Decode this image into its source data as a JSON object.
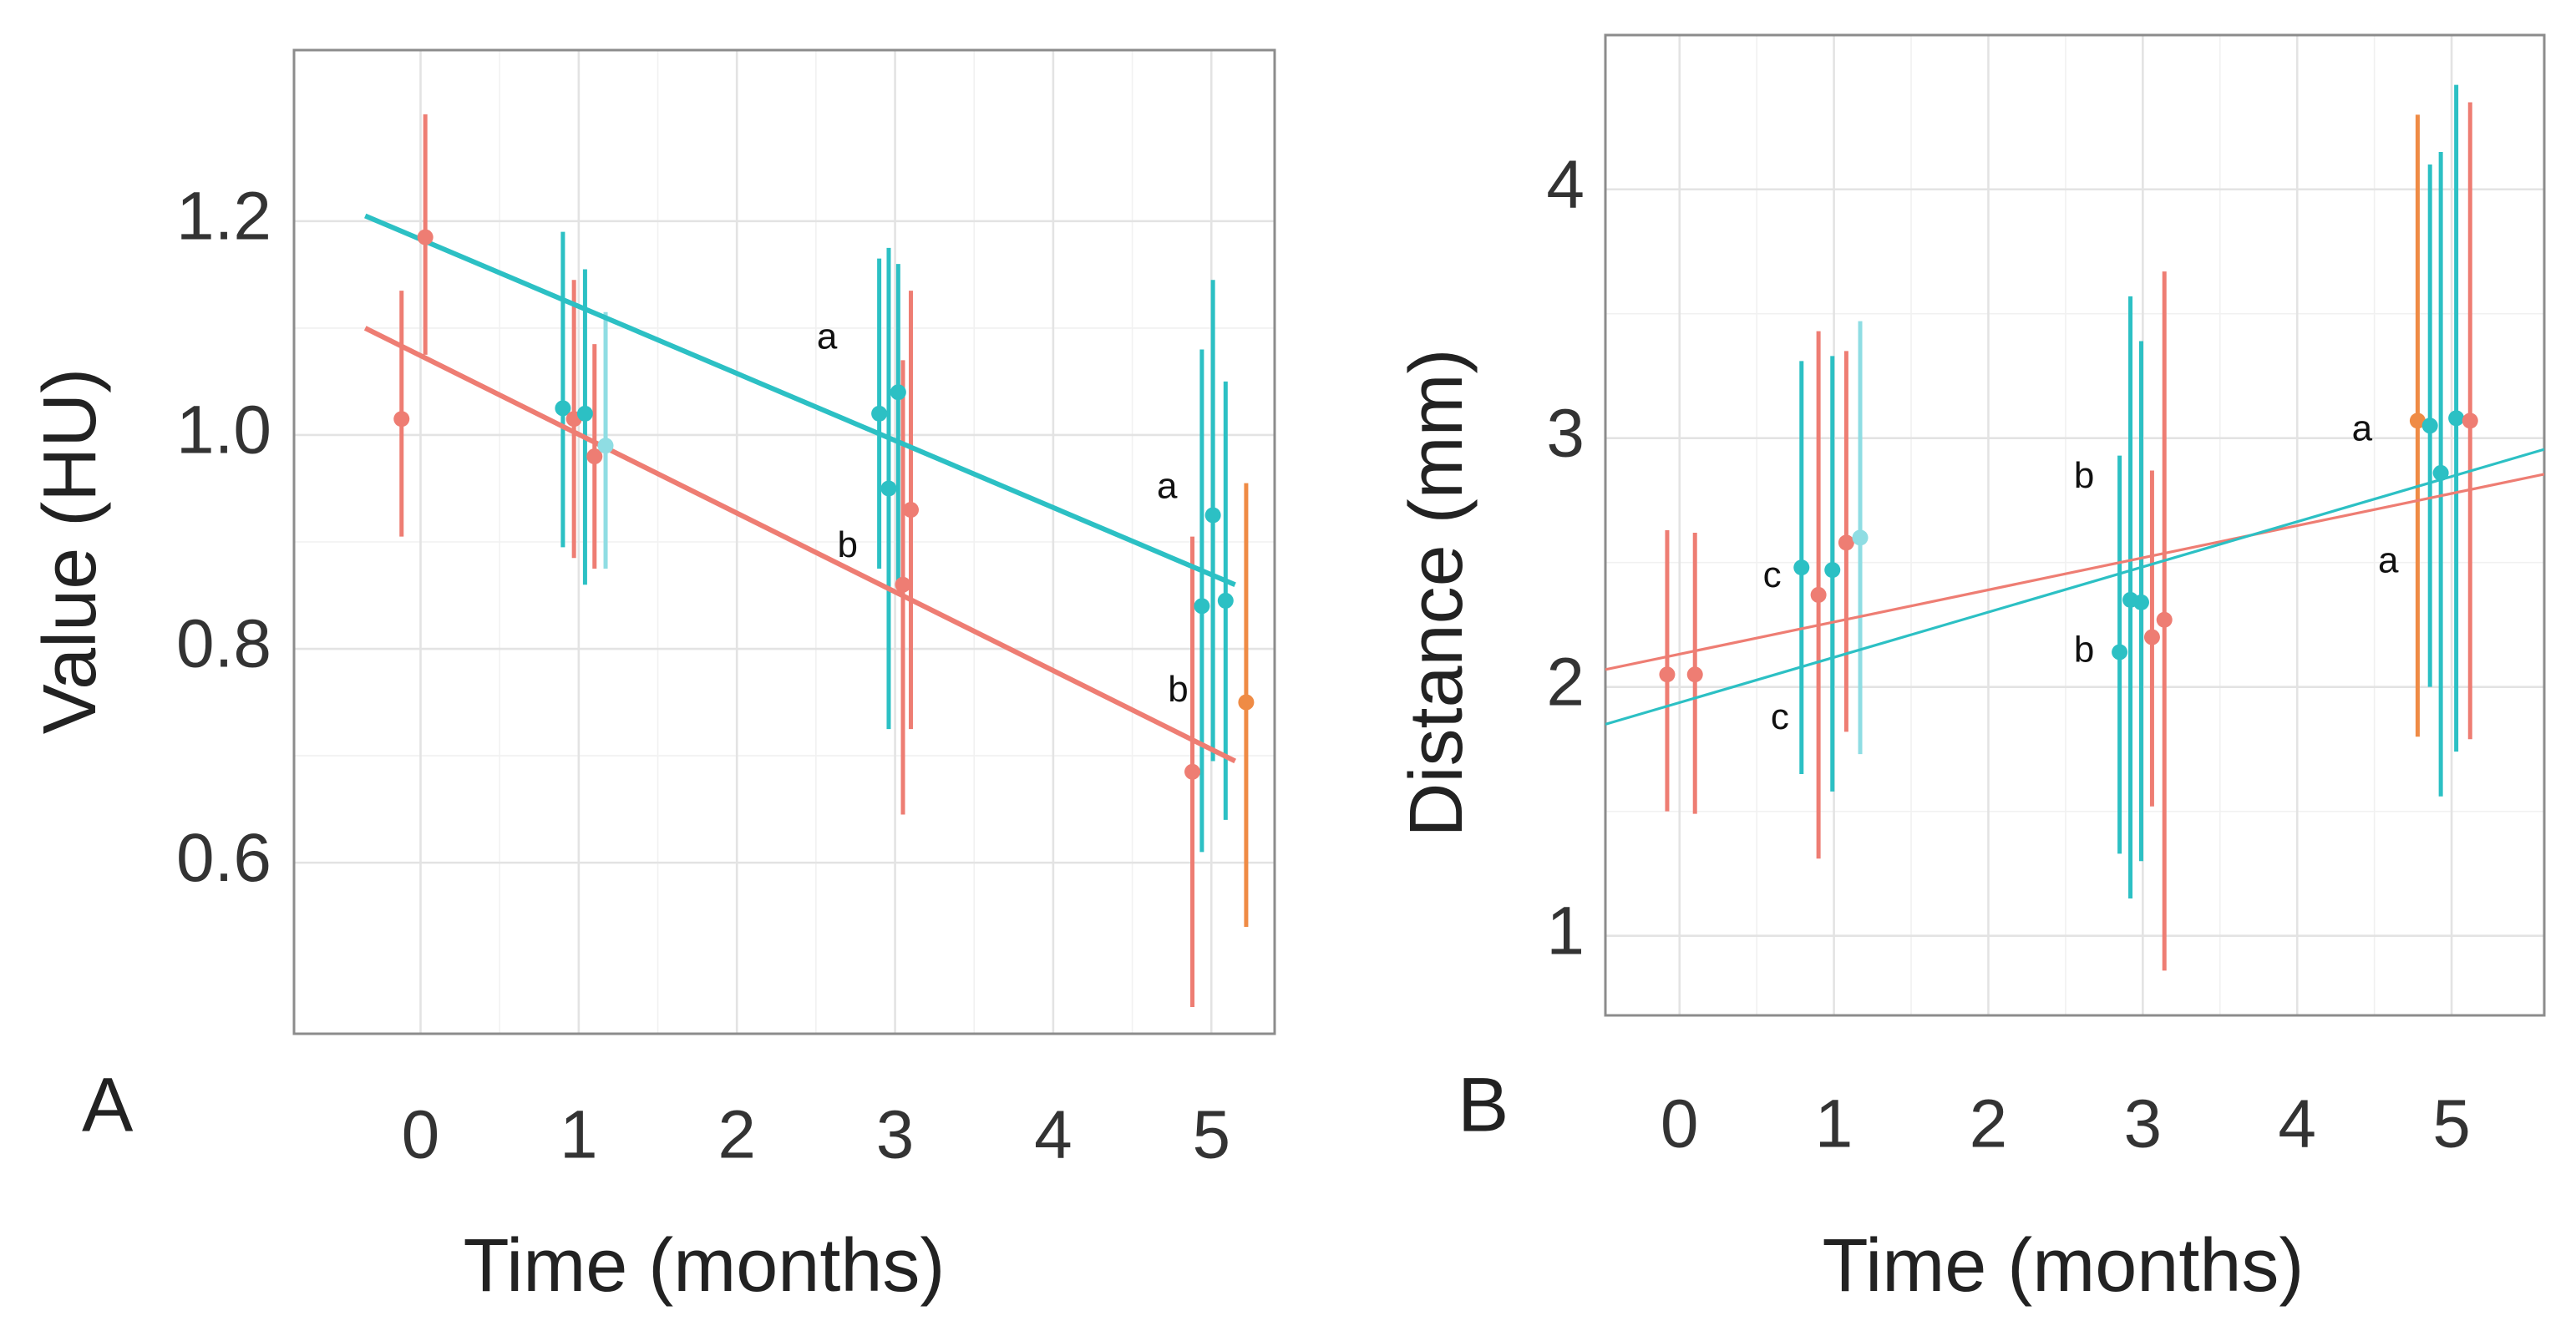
{
  "colors": {
    "red": "#ee7d73",
    "cyan": "#2cc0c4",
    "orange": "#ef8b45",
    "lightcyan": "#8fdde3"
  },
  "chart_data": [
    {
      "id": "A",
      "type": "scatter",
      "panel_label": "A",
      "xlabel": "Time (months)",
      "ylabel": "Value (HU)",
      "xlim": [
        -0.8,
        5.4
      ],
      "ylim": [
        0.44,
        1.36
      ],
      "grid": true,
      "x_ticks": [
        0,
        1,
        2,
        3,
        4,
        5
      ],
      "x_tick_labels": [
        "0",
        "1",
        "2",
        "3",
        "4",
        "5"
      ],
      "y_ticks": [
        0.6,
        0.8,
        1.0,
        1.2
      ],
      "y_tick_labels": [
        "0.6",
        "0.8",
        "1.0",
        "1.2"
      ],
      "fit_lines": [
        {
          "name": "cyan trend",
          "color": "cyan",
          "x": [
            -0.35,
            5.15
          ],
          "y": [
            1.205,
            0.86
          ],
          "width": 6
        },
        {
          "name": "red trend",
          "color": "red",
          "x": [
            -0.35,
            5.15
          ],
          "y": [
            1.1,
            0.695
          ],
          "width": 6
        }
      ],
      "points": [
        {
          "color": "red",
          "x": -0.12,
          "y": 1.015,
          "low": 0.905,
          "high": 1.135
        },
        {
          "color": "red",
          "x": 0.03,
          "y": 1.185,
          "low": 1.075,
          "high": 1.3
        },
        {
          "color": "cyan",
          "x": 0.9,
          "y": 1.025,
          "low": 0.895,
          "high": 1.19
        },
        {
          "color": "red",
          "x": 0.97,
          "y": 1.015,
          "low": 0.885,
          "high": 1.145
        },
        {
          "color": "cyan",
          "x": 1.04,
          "y": 1.02,
          "low": 0.86,
          "high": 1.155
        },
        {
          "color": "red",
          "x": 1.1,
          "y": 0.98,
          "low": 0.875,
          "high": 1.085
        },
        {
          "color": "lightcyan",
          "x": 1.17,
          "y": 0.99,
          "low": 0.875,
          "high": 1.115
        },
        {
          "color": "cyan",
          "x": 2.9,
          "y": 1.02,
          "low": 0.875,
          "high": 1.165
        },
        {
          "color": "cyan",
          "x": 2.96,
          "y": 0.95,
          "low": 0.725,
          "high": 1.175
        },
        {
          "color": "cyan",
          "x": 3.02,
          "y": 1.04,
          "low": 0.86,
          "high": 1.16
        },
        {
          "color": "red",
          "x": 3.05,
          "y": 0.86,
          "low": 0.645,
          "high": 1.07
        },
        {
          "color": "red",
          "x": 3.1,
          "y": 0.93,
          "low": 0.725,
          "high": 1.135
        },
        {
          "color": "red",
          "x": 4.88,
          "y": 0.685,
          "low": 0.465,
          "high": 0.905
        },
        {
          "color": "cyan",
          "x": 4.94,
          "y": 0.84,
          "low": 0.61,
          "high": 1.08
        },
        {
          "color": "cyan",
          "x": 5.01,
          "y": 0.925,
          "low": 0.695,
          "high": 1.145
        },
        {
          "color": "cyan",
          "x": 5.09,
          "y": 0.845,
          "low": 0.64,
          "high": 1.05
        },
        {
          "color": "orange",
          "x": 5.22,
          "y": 0.75,
          "low": 0.54,
          "high": 0.955
        }
      ],
      "annotations": [
        {
          "text": "a",
          "x": 2.57,
          "y": 1.09
        },
        {
          "text": "b",
          "x": 2.7,
          "y": 0.895
        },
        {
          "text": "a",
          "x": 4.72,
          "y": 0.95
        },
        {
          "text": "b",
          "x": 4.79,
          "y": 0.76
        }
      ]
    },
    {
      "id": "B",
      "type": "scatter",
      "panel_label": "B",
      "xlabel": "Time (months)",
      "ylabel": "Distance (mm)",
      "xlim": [
        -0.48,
        5.6
      ],
      "ylim": [
        0.68,
        4.62
      ],
      "grid": true,
      "x_ticks": [
        0,
        1,
        2,
        3,
        4,
        5
      ],
      "x_tick_labels": [
        "0",
        "1",
        "2",
        "3",
        "4",
        "5"
      ],
      "y_ticks": [
        1,
        2,
        3,
        4
      ],
      "y_tick_labels": [
        "1",
        "2",
        "3",
        "4"
      ],
      "fit_lines": [
        {
          "name": "red trend",
          "color": "red",
          "x": [
            -0.48,
            5.6
          ],
          "y": [
            2.07,
            2.855
          ],
          "width": 3.2
        },
        {
          "name": "cyan trend",
          "color": "cyan",
          "x": [
            -0.48,
            5.6
          ],
          "y": [
            1.85,
            2.955
          ],
          "width": 3.2
        }
      ],
      "points": [
        {
          "color": "red",
          "x": -0.08,
          "y": 2.05,
          "low": 1.5,
          "high": 2.63
        },
        {
          "color": "red",
          "x": 0.1,
          "y": 2.05,
          "low": 1.49,
          "high": 2.62
        },
        {
          "color": "cyan",
          "x": 0.79,
          "y": 2.48,
          "low": 1.65,
          "high": 3.31
        },
        {
          "color": "red",
          "x": 0.9,
          "y": 2.37,
          "low": 1.31,
          "high": 3.43
        },
        {
          "color": "cyan",
          "x": 0.99,
          "y": 2.47,
          "low": 1.58,
          "high": 3.33
        },
        {
          "color": "red",
          "x": 1.08,
          "y": 2.58,
          "low": 1.82,
          "high": 3.35
        },
        {
          "color": "lightcyan",
          "x": 1.17,
          "y": 2.6,
          "low": 1.73,
          "high": 3.47
        },
        {
          "color": "cyan",
          "x": 2.85,
          "y": 2.14,
          "low": 1.33,
          "high": 2.93
        },
        {
          "color": "cyan",
          "x": 2.92,
          "y": 2.35,
          "low": 1.15,
          "high": 3.57
        },
        {
          "color": "cyan",
          "x": 2.99,
          "y": 2.34,
          "low": 1.3,
          "high": 3.39
        },
        {
          "color": "red",
          "x": 3.06,
          "y": 2.2,
          "low": 1.52,
          "high": 2.87
        },
        {
          "color": "red",
          "x": 3.14,
          "y": 2.27,
          "low": 0.86,
          "high": 3.67
        },
        {
          "color": "orange",
          "x": 4.78,
          "y": 3.07,
          "low": 1.8,
          "high": 4.3
        },
        {
          "color": "cyan",
          "x": 4.86,
          "y": 3.05,
          "low": 2.0,
          "high": 4.1
        },
        {
          "color": "cyan",
          "x": 4.93,
          "y": 2.86,
          "low": 1.56,
          "high": 4.15
        },
        {
          "color": "cyan",
          "x": 5.03,
          "y": 3.08,
          "low": 1.74,
          "high": 4.42
        },
        {
          "color": "red",
          "x": 5.12,
          "y": 3.07,
          "low": 1.79,
          "high": 4.35
        }
      ],
      "annotations": [
        {
          "text": "c",
          "x": 0.6,
          "y": 2.44
        },
        {
          "text": "c",
          "x": 0.65,
          "y": 1.87
        },
        {
          "text": "b",
          "x": 2.62,
          "y": 2.84
        },
        {
          "text": "b",
          "x": 2.62,
          "y": 2.14
        },
        {
          "text": "a",
          "x": 4.42,
          "y": 3.03
        },
        {
          "text": "a",
          "x": 4.59,
          "y": 2.5
        }
      ]
    }
  ]
}
